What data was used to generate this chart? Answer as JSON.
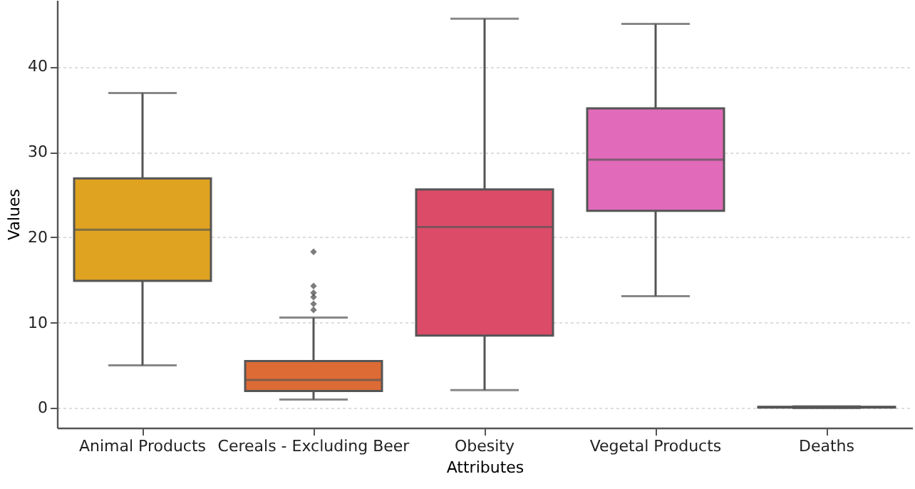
{
  "chart_data": {
    "type": "box",
    "xlabel": "Attributes",
    "ylabel": "Values",
    "categories": [
      "Animal Products",
      "Cereals - Excluding Beer",
      "Obesity",
      "Vegetal Products",
      "Deaths"
    ],
    "colors": [
      "#dfa321",
      "#dd6b35",
      "#dc4b68",
      "#e26aba",
      "#9a9ad0"
    ],
    "boxes": [
      {
        "low": 5.0,
        "q1": 14.9,
        "median": 20.9,
        "q3": 26.9,
        "high": 36.9
      },
      {
        "low": 1.0,
        "q1": 2.0,
        "median": 3.3,
        "q3": 5.5,
        "high": 10.6,
        "outliers": [
          18.3,
          14.3,
          13.5,
          13.0,
          12.2,
          11.5
        ]
      },
      {
        "low": 2.1,
        "q1": 8.5,
        "median": 21.2,
        "q3": 25.6,
        "high": 45.6
      },
      {
        "low": 13.1,
        "q1": 23.1,
        "median": 29.1,
        "q3": 35.1,
        "high": 45.0
      },
      {
        "low": 0.0,
        "q1": 0.05,
        "median": 0.1,
        "q3": 0.15,
        "high": 0.2
      }
    ],
    "ylim": [
      -2.3,
      47.8
    ],
    "yticks": [
      0,
      10,
      20,
      30,
      40
    ],
    "grid": "y"
  }
}
